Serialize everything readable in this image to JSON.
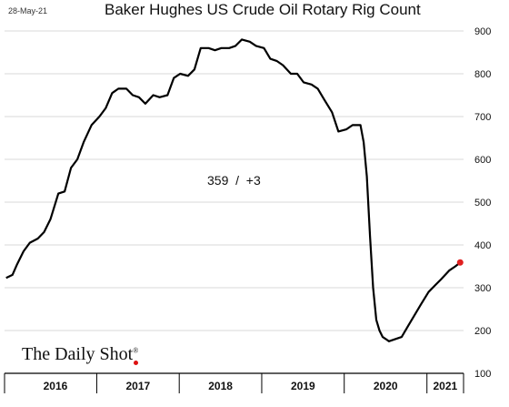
{
  "date_stamp": "28-May-21",
  "brand": {
    "name": "The Daily Shot",
    "mark": "®"
  },
  "colors": {
    "line": "#000000",
    "last_point": "#e02020",
    "grid": "#d9d9d9",
    "brand_dot": "#d11111"
  },
  "chart_data": {
    "type": "line",
    "title": "Baker Hughes US Crude Oil Rotary Rig Count",
    "annotation": "359  /  +3",
    "ylim": [
      100,
      900
    ],
    "yticks": [
      100,
      200,
      300,
      400,
      500,
      600,
      700,
      800,
      900
    ],
    "y_axis_side": "right",
    "grid": true,
    "xlim": [
      "2015-11-20",
      "2021-06-12"
    ],
    "x_year_labels": [
      "2016",
      "2017",
      "2018",
      "2019",
      "2020",
      "2021"
    ],
    "x_year_bounds": [
      "2016-01-01",
      "2017-01-01",
      "2018-01-01",
      "2019-01-01",
      "2020-01-01",
      "2021-01-01"
    ],
    "series": [
      {
        "x": [
          "2015-11-27",
          "2015-12-25",
          "2016-01-15",
          "2016-02-12",
          "2016-03-11",
          "2016-04-15",
          "2016-05-13",
          "2016-06-10",
          "2016-07-15",
          "2016-08-12",
          "2016-09-09",
          "2016-10-07",
          "2016-11-04",
          "2016-12-09",
          "2017-01-13",
          "2017-02-10",
          "2017-03-10",
          "2017-04-07",
          "2017-05-12",
          "2017-06-09",
          "2017-07-07",
          "2017-08-04",
          "2017-09-08",
          "2017-10-06",
          "2017-11-10",
          "2017-12-08",
          "2018-01-05",
          "2018-02-09",
          "2018-03-09",
          "2018-04-06",
          "2018-05-11",
          "2018-06-08",
          "2018-07-06",
          "2018-08-10",
          "2018-09-07",
          "2018-10-05",
          "2018-11-09",
          "2018-12-07",
          "2019-01-11",
          "2019-02-08",
          "2019-03-08",
          "2019-04-05",
          "2019-05-10",
          "2019-06-07",
          "2019-07-05",
          "2019-08-09",
          "2019-09-06",
          "2019-10-04",
          "2019-11-08",
          "2019-12-06",
          "2020-01-10",
          "2020-02-07",
          "2020-03-13",
          "2020-03-27",
          "2020-04-10",
          "2020-04-24",
          "2020-05-08",
          "2020-05-22",
          "2020-06-05",
          "2020-06-19",
          "2020-07-03",
          "2020-07-17",
          "2020-08-14",
          "2020-09-11",
          "2020-10-09",
          "2020-11-06",
          "2020-12-04",
          "2021-01-08",
          "2021-02-05",
          "2021-03-05",
          "2021-04-09",
          "2021-05-07",
          "2021-05-28"
        ],
        "values": [
          323,
          330,
          355,
          385,
          405,
          415,
          430,
          460,
          520,
          525,
          580,
          600,
          640,
          680,
          700,
          720,
          755,
          765,
          765,
          750,
          745,
          730,
          750,
          745,
          750,
          790,
          800,
          795,
          810,
          860,
          860,
          855,
          860,
          860,
          865,
          880,
          875,
          865,
          860,
          835,
          830,
          820,
          800,
          800,
          780,
          775,
          765,
          740,
          710,
          665,
          670,
          680,
          680,
          640,
          560,
          420,
          300,
          225,
          200,
          185,
          180,
          175,
          180,
          185,
          210,
          235,
          260,
          290,
          305,
          320,
          340,
          350,
          359
        ]
      }
    ]
  }
}
